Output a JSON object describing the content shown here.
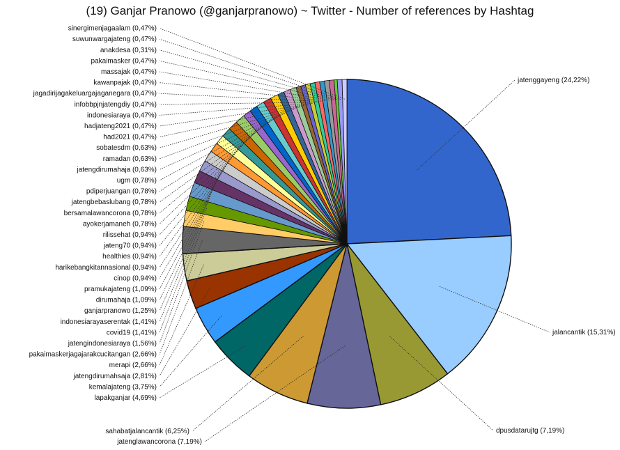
{
  "chart_data": {
    "type": "pie",
    "title": "(19) Ganjar Pranowo (@ganjarpranowo) ~ Twitter - Number of references by Hashtag",
    "slices": [
      {
        "label": "jatenggayeng (24,22%)",
        "value": 24.22,
        "color": "#3366cc"
      },
      {
        "label": "jalancantik (15,31%)",
        "value": 15.31,
        "color": "#99ccff"
      },
      {
        "label": "dpusdatarujtg (7,19%)",
        "value": 7.19,
        "color": "#999933"
      },
      {
        "label": "jatenglawancorona (7,19%)",
        "value": 7.19,
        "color": "#666699"
      },
      {
        "label": "sahabatjalancantik (6,25%)",
        "value": 6.25,
        "color": "#cc9933"
      },
      {
        "label": "lapakganjar (4,69%)",
        "value": 4.69,
        "color": "#006666"
      },
      {
        "label": "kemalajateng (3,75%)",
        "value": 3.75,
        "color": "#3399ff"
      },
      {
        "label": "jatengdirumahsaja (2,81%)",
        "value": 2.81,
        "color": "#993300"
      },
      {
        "label": "merapi (2,66%)",
        "value": 2.66,
        "color": "#cccc99"
      },
      {
        "label": "pakaimaskerjagajarakcucitangan (2,66%)",
        "value": 2.66,
        "color": "#666666"
      },
      {
        "label": "jatengindonesiaraya (1,56%)",
        "value": 1.56,
        "color": "#ffcc66"
      },
      {
        "label": "covid19 (1,41%)",
        "value": 1.41,
        "color": "#669900"
      },
      {
        "label": "indonesiarayaserentak (1,41%)",
        "value": 1.41,
        "color": "#6699cc"
      },
      {
        "label": "ganjarpranowo (1,25%)",
        "value": 1.25,
        "color": "#663366"
      },
      {
        "label": "dirumahaja (1,09%)",
        "value": 1.09,
        "color": "#9999cc"
      },
      {
        "label": "pramukajateng (1,09%)",
        "value": 1.09,
        "color": "#cccccc"
      },
      {
        "label": "cinop (0,94%)",
        "value": 0.94,
        "color": "#ff9933"
      },
      {
        "label": "harikebangkitannasional (0,94%)",
        "value": 0.94,
        "color": "#ffff99"
      },
      {
        "label": "healthies (0,94%)",
        "value": 0.94,
        "color": "#339999"
      },
      {
        "label": "jateng70 (0,94%)",
        "value": 0.94,
        "color": "#cc6600"
      },
      {
        "label": "rilissehat (0,94%)",
        "value": 0.94,
        "color": "#99cc66"
      },
      {
        "label": "ayokerjamaneh (0,78%)",
        "value": 0.78,
        "color": "#9966cc"
      },
      {
        "label": "bersamalawancorona (0,78%)",
        "value": 0.78,
        "color": "#0066cc"
      },
      {
        "label": "jatengbebaslubang (0,78%)",
        "value": 0.78,
        "color": "#66cccc"
      },
      {
        "label": "pdiperjuangan (0,78%)",
        "value": 0.78,
        "color": "#cc3333"
      },
      {
        "label": "ugm (0,78%)",
        "value": 0.78,
        "color": "#ffcc00"
      },
      {
        "label": "jatengdirumahaja (0,63%)",
        "value": 0.63,
        "color": "#336699"
      },
      {
        "label": "ramadan (0,63%)",
        "value": 0.63,
        "color": "#cc99cc"
      },
      {
        "label": "sobatesdm (0,63%)",
        "value": 0.63,
        "color": "#99cc99"
      },
      {
        "label": "had2021 (0,47%)",
        "value": 0.47,
        "color": "#996633"
      },
      {
        "label": "hadjateng2021 (0,47%)",
        "value": 0.47,
        "color": "#6666cc"
      },
      {
        "label": "indonesiaraya (0,47%)",
        "value": 0.47,
        "color": "#cccc33"
      },
      {
        "label": "infobbpjnjatengdiy (0,47%)",
        "value": 0.47,
        "color": "#33cc99"
      },
      {
        "label": "jagadirijagakeluargajaganegara (0,47%)",
        "value": 0.47,
        "color": "#ff6666"
      },
      {
        "label": "kawanpajak (0,47%)",
        "value": 0.47,
        "color": "#3399cc"
      },
      {
        "label": "massajak (0,47%)",
        "value": 0.47,
        "color": "#999999"
      },
      {
        "label": "pakaimasker (0,47%)",
        "value": 0.47,
        "color": "#cc6699"
      },
      {
        "label": "anakdesa (0,31%)",
        "value": 0.31,
        "color": "#66cc33"
      },
      {
        "label": "suwunwargajateng (0,47%)",
        "value": 0.47,
        "color": "#9999ff"
      },
      {
        "label": "sinergimenjagaalam (0,47%)",
        "value": 0.47,
        "color": "#ccccff"
      }
    ],
    "start_angle_deg": 0,
    "direction": "clockwise",
    "legend": "none"
  }
}
